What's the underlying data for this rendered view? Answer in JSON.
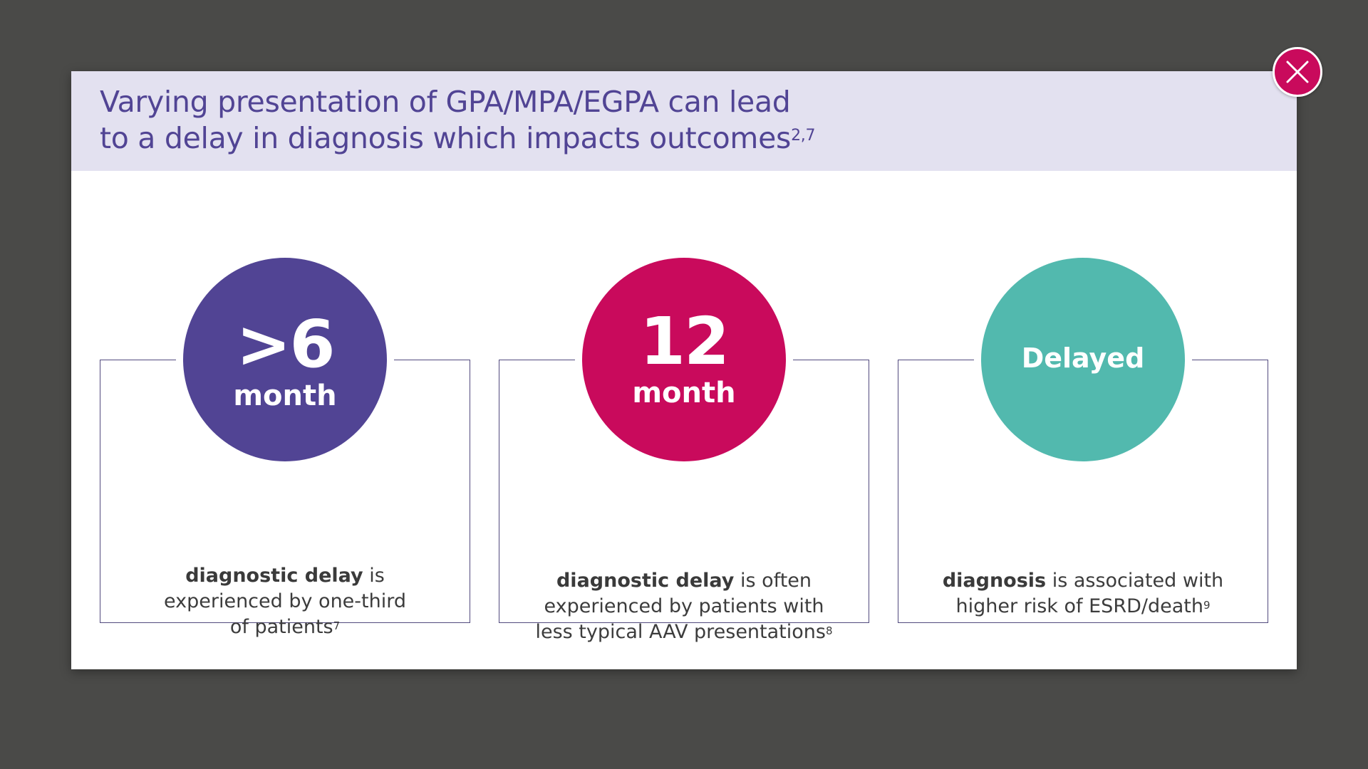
{
  "modal": {
    "title_line1": "Varying presentation of GPA/MPA/EGPA can lead",
    "title_line2": "to a delay in diagnosis which impacts outcomes",
    "title_ref": "2,7",
    "close_icon": "close-x-icon"
  },
  "colors": {
    "background": "#4a4a48",
    "header_band": "#e3e1f0",
    "title": "#514494",
    "close_button": "#c90a5c",
    "stat_purple": "#514494",
    "stat_magenta": "#c90a5c",
    "stat_teal": "#52b9ae",
    "card_border": "#514a7e"
  },
  "cards": [
    {
      "value": ">6",
      "unit": "month",
      "bold": "diagnostic delay",
      "text_line1_rest": " is",
      "text_line2": "experienced by one-third",
      "text_line3": "of patients",
      "ref": "7"
    },
    {
      "value": "12",
      "unit": "month",
      "bold": "diagnostic delay",
      "text_line1_rest": " is often",
      "text_line2": "experienced by patients with",
      "text_line3": "less typical AAV presentations",
      "ref": "8"
    },
    {
      "value": "Delayed",
      "bold": "diagnosis",
      "text_line1_rest": " is associated with",
      "text_line2": "higher risk of ESRD/death",
      "ref": "9"
    }
  ]
}
